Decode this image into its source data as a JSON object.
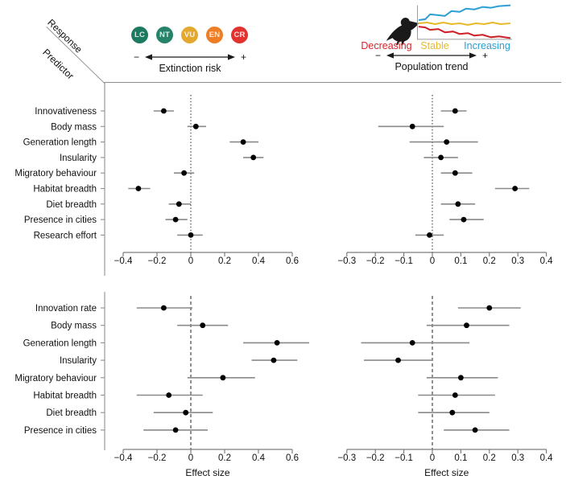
{
  "figure": {
    "header": {
      "response_label": "Response",
      "predictor_label": "Predictor",
      "extinction_risk": {
        "categories": [
          {
            "code": "LC",
            "color": "#1b7a5f"
          },
          {
            "code": "NT",
            "color": "#27826a"
          },
          {
            "code": "VU",
            "color": "#e5a82e"
          },
          {
            "code": "EN",
            "color": "#ee7d23"
          },
          {
            "code": "CR",
            "color": "#e23230"
          }
        ],
        "minus_label": "−",
        "plus_label": "+",
        "axis_label": "Extinction risk"
      },
      "population_trend": {
        "legend": [
          {
            "label": "Decreasing",
            "color": "#d8232a"
          },
          {
            "label": "Stable",
            "color": "#e7ba2c"
          },
          {
            "label": "Increasing",
            "color": "#2d9fd5"
          }
        ],
        "minus_label": "−",
        "plus_label": "+",
        "axis_label": "Population trend",
        "mini_chart_lines": [
          {
            "name": "increasing",
            "color": "#2d9fd5",
            "points": [
              [
                2,
                18
              ],
              [
                10,
                17
              ],
              [
                16,
                11
              ],
              [
                26,
                12
              ],
              [
                34,
                13
              ],
              [
                42,
                7
              ],
              [
                52,
                8
              ],
              [
                60,
                4
              ],
              [
                70,
                5
              ],
              [
                80,
                2
              ],
              [
                90,
                3
              ],
              [
                100,
                1
              ],
              [
                114,
                0
              ]
            ]
          },
          {
            "name": "stable",
            "color": "#e7ba2c",
            "points": [
              [
                2,
                22
              ],
              [
                12,
                21
              ],
              [
                22,
                23
              ],
              [
                32,
                21
              ],
              [
                42,
                23
              ],
              [
                52,
                22
              ],
              [
                62,
                24
              ],
              [
                72,
                22
              ],
              [
                82,
                23
              ],
              [
                92,
                21
              ],
              [
                102,
                23
              ],
              [
                114,
                22
              ]
            ]
          },
          {
            "name": "decreasing",
            "color": "#cc2128",
            "points": [
              [
                2,
                26
              ],
              [
                10,
                27
              ],
              [
                16,
                30
              ],
              [
                26,
                29
              ],
              [
                34,
                33
              ],
              [
                44,
                32
              ],
              [
                52,
                35
              ],
              [
                62,
                34
              ],
              [
                70,
                37
              ],
              [
                80,
                36
              ],
              [
                90,
                39
              ],
              [
                100,
                38
              ],
              [
                114,
                40
              ]
            ]
          }
        ]
      }
    }
  },
  "chart_data": {
    "type": "forest",
    "xlabel": "Effect size",
    "panels": [
      {
        "id": "top-left",
        "xlim": [
          -0.4,
          0.6
        ],
        "ticks": [
          -0.4,
          -0.2,
          0,
          0.2,
          0.4,
          0.6
        ],
        "zero_line": "dotted",
        "show_labels": true,
        "xlabel": "",
        "rows": [
          {
            "label": "Innovativeness",
            "est": -0.16,
            "lo": -0.22,
            "hi": -0.1
          },
          {
            "label": "Body mass",
            "est": 0.03,
            "lo": -0.02,
            "hi": 0.09
          },
          {
            "label": "Generation length",
            "est": 0.31,
            "lo": 0.23,
            "hi": 0.4
          },
          {
            "label": "Insularity",
            "est": 0.37,
            "lo": 0.31,
            "hi": 0.43
          },
          {
            "label": "Migratory behaviour",
            "est": -0.04,
            "lo": -0.1,
            "hi": 0.02
          },
          {
            "label": "Habitat breadth",
            "est": -0.31,
            "lo": -0.37,
            "hi": -0.24
          },
          {
            "label": "Diet breadth",
            "est": -0.07,
            "lo": -0.13,
            "hi": 0.0
          },
          {
            "label": "Presence in cities",
            "est": -0.09,
            "lo": -0.15,
            "hi": -0.02
          },
          {
            "label": "Research effort",
            "est": 0.0,
            "lo": -0.08,
            "hi": 0.07
          }
        ]
      },
      {
        "id": "top-right",
        "xlim": [
          -0.3,
          0.4
        ],
        "ticks": [
          -0.3,
          -0.2,
          -0.1,
          0,
          0.1,
          0.2,
          0.3,
          0.4
        ],
        "zero_line": "dotted",
        "show_labels": false,
        "xlabel": "",
        "rows": [
          {
            "label": "Innovativeness",
            "est": 0.08,
            "lo": 0.03,
            "hi": 0.12
          },
          {
            "label": "Body mass",
            "est": -0.07,
            "lo": -0.19,
            "hi": 0.04
          },
          {
            "label": "Generation length",
            "est": 0.05,
            "lo": -0.08,
            "hi": 0.16
          },
          {
            "label": "Insularity",
            "est": 0.03,
            "lo": -0.03,
            "hi": 0.09
          },
          {
            "label": "Migratory behaviour",
            "est": 0.08,
            "lo": 0.03,
            "hi": 0.14
          },
          {
            "label": "Habitat breadth",
            "est": 0.29,
            "lo": 0.22,
            "hi": 0.34
          },
          {
            "label": "Diet breadth",
            "est": 0.09,
            "lo": 0.03,
            "hi": 0.15
          },
          {
            "label": "Presence in cities",
            "est": 0.11,
            "lo": 0.06,
            "hi": 0.18
          },
          {
            "label": "Research effort",
            "est": -0.01,
            "lo": -0.06,
            "hi": 0.04
          }
        ]
      },
      {
        "id": "bottom-left",
        "xlim": [
          -0.4,
          0.6
        ],
        "ticks": [
          -0.4,
          -0.2,
          0,
          0.2,
          0.4,
          0.6
        ],
        "zero_line": "dashed",
        "show_labels": true,
        "xlabel": "Effect size",
        "rows": [
          {
            "label": "Innovation rate",
            "est": -0.16,
            "lo": -0.32,
            "hi": 0.01
          },
          {
            "label": "Body mass",
            "est": 0.07,
            "lo": -0.08,
            "hi": 0.22
          },
          {
            "label": "Generation length",
            "est": 0.51,
            "lo": 0.31,
            "hi": 0.7
          },
          {
            "label": "Insularity",
            "est": 0.49,
            "lo": 0.36,
            "hi": 0.63
          },
          {
            "label": "Migratory behaviour",
            "est": 0.19,
            "lo": -0.02,
            "hi": 0.38
          },
          {
            "label": "Habitat breadth",
            "est": -0.13,
            "lo": -0.32,
            "hi": 0.07
          },
          {
            "label": "Diet breadth",
            "est": -0.03,
            "lo": -0.22,
            "hi": 0.13
          },
          {
            "label": "Presence in cities",
            "est": -0.09,
            "lo": -0.28,
            "hi": 0.1
          }
        ]
      },
      {
        "id": "bottom-right",
        "xlim": [
          -0.3,
          0.4
        ],
        "ticks": [
          -0.3,
          -0.2,
          -0.1,
          0,
          0.1,
          0.2,
          0.3,
          0.4
        ],
        "zero_line": "dashed",
        "show_labels": false,
        "xlabel": "Effect size",
        "rows": [
          {
            "label": "Innovation rate",
            "est": 0.2,
            "lo": 0.09,
            "hi": 0.31
          },
          {
            "label": "Body mass",
            "est": 0.12,
            "lo": -0.02,
            "hi": 0.27
          },
          {
            "label": "Generation length",
            "est": -0.07,
            "lo": -0.25,
            "hi": 0.13
          },
          {
            "label": "Insularity",
            "est": -0.12,
            "lo": -0.24,
            "hi": 0.0
          },
          {
            "label": "Migratory behaviour",
            "est": 0.1,
            "lo": -0.02,
            "hi": 0.23
          },
          {
            "label": "Habitat breadth",
            "est": 0.08,
            "lo": -0.05,
            "hi": 0.22
          },
          {
            "label": "Diet breadth",
            "est": 0.07,
            "lo": -0.05,
            "hi": 0.2
          },
          {
            "label": "Presence in cities",
            "est": 0.15,
            "lo": 0.04,
            "hi": 0.27
          }
        ]
      }
    ]
  }
}
